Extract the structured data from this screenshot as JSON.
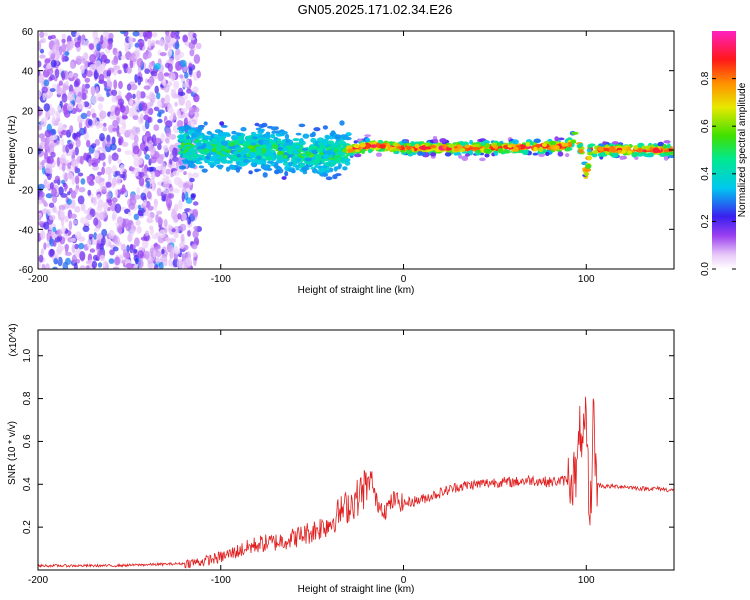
{
  "title": "GN05.2025.171.02.34.E26",
  "colors": {
    "line": "#e02020",
    "axes": "#000000",
    "background": "#ffffff"
  },
  "chart_data": [
    {
      "type": "heatmap",
      "xlabel": "Height of straight line (km)",
      "ylabel": "Frequency (Hz)",
      "xlim": [
        -200,
        148
      ],
      "ylim": [
        -60,
        60
      ],
      "xticks": [
        -200,
        -100,
        0,
        100
      ],
      "yticks": [
        -60,
        -40,
        -20,
        0,
        20,
        40,
        60
      ],
      "grid": false,
      "colorbar": {
        "label": "Normalized spectral amplitude",
        "range": [
          0,
          1
        ],
        "ticks": [
          0.0,
          0.2,
          0.4,
          0.6,
          0.8
        ],
        "colormap": "rainbow (white-violet-blue-cyan-green-yellow-orange-red-magenta)"
      },
      "regions": [
        {
          "x": [
            -200,
            -112
          ],
          "freq_spread": 60,
          "amplitude": 0.15,
          "pattern": "scattered speckle noise"
        },
        {
          "x": [
            -122,
            -30
          ],
          "freq_spread": 10,
          "amplitude": 0.3,
          "pattern": "concentrated band near 0 Hz"
        },
        {
          "x": [
            -30,
            148
          ],
          "freq_spread": 3,
          "amplitude": 0.9,
          "pattern": "narrow strong line near 0 Hz"
        }
      ],
      "centre_freq": {
        "x": [
          -122,
          -100,
          -80,
          -60,
          -50,
          -40,
          -30,
          -20,
          -10,
          0,
          10,
          50,
          90,
          95,
          98,
          100,
          102,
          148
        ],
        "hz": [
          2,
          0,
          1,
          -1,
          -3,
          -2,
          0,
          2,
          2,
          1,
          1,
          1,
          2,
          8,
          -4,
          -14,
          0,
          0
        ]
      }
    },
    {
      "type": "line",
      "xlabel": "Height of straight line (km)",
      "ylabel": "SNR (10 * v/v)",
      "y_multiplier": "(x10^4)",
      "xlim": [
        -200,
        148
      ],
      "ylim": [
        0,
        1.12
      ],
      "xticks": [
        -200,
        -100,
        0,
        100
      ],
      "yticks": [
        0.2,
        0.4,
        0.6,
        0.8,
        1.0
      ],
      "grid": false,
      "series": [
        {
          "x": [
            -200,
            -180,
            -160,
            -140,
            -120,
            -110,
            -100,
            -90,
            -80,
            -70,
            -60,
            -50,
            -40,
            -35,
            -30,
            -25,
            -20,
            -18,
            -15,
            -10,
            -5,
            0,
            10,
            20,
            30,
            40,
            50,
            60,
            70,
            80,
            90,
            95,
            97,
            98,
            100,
            102,
            104,
            105,
            106,
            110,
            120,
            130,
            140,
            148
          ],
          "y": [
            0.02,
            0.02,
            0.02,
            0.025,
            0.03,
            0.04,
            0.06,
            0.09,
            0.12,
            0.13,
            0.15,
            0.18,
            0.22,
            0.27,
            0.3,
            0.34,
            0.4,
            0.42,
            0.32,
            0.28,
            0.33,
            0.31,
            0.33,
            0.36,
            0.39,
            0.4,
            0.41,
            0.41,
            0.42,
            0.41,
            0.42,
            0.45,
            0.7,
            0.55,
            0.7,
            0.2,
            0.72,
            0.5,
            0.4,
            0.39,
            0.39,
            0.38,
            0.38,
            0.37
          ]
        }
      ]
    }
  ]
}
